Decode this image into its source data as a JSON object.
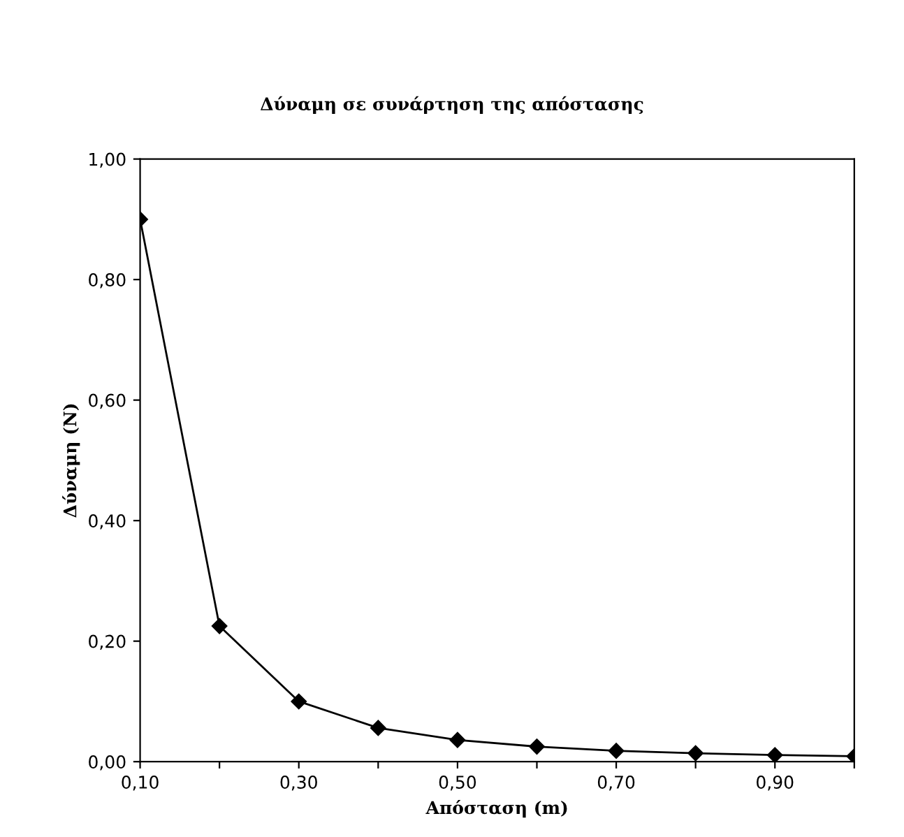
{
  "chart_data": {
    "type": "line",
    "title": "Δύναμη σε συνάρτηση της απόστασης",
    "xlabel": "Απόσταση (m)",
    "ylabel": "Δύναμη (N)",
    "x": [
      0.1,
      0.2,
      0.3,
      0.4,
      0.5,
      0.6,
      0.7,
      0.8,
      0.9,
      1.0
    ],
    "series": [
      {
        "color": "#000000",
        "values": [
          0.9,
          0.225,
          0.1,
          0.056,
          0.036,
          0.025,
          0.018,
          0.014,
          0.011,
          0.009
        ]
      }
    ],
    "xlim": [
      0.1,
      1.0
    ],
    "xticks": [
      {
        "value": 0.1,
        "label": "0,10"
      },
      {
        "value": 0.2,
        "label": null
      },
      {
        "value": 0.3,
        "label": "0,30"
      },
      {
        "value": 0.4,
        "label": null
      },
      {
        "value": 0.5,
        "label": "0,50"
      },
      {
        "value": 0.6,
        "label": null
      },
      {
        "value": 0.7,
        "label": "0,70"
      },
      {
        "value": 0.8,
        "label": null
      },
      {
        "value": 0.9,
        "label": "0,90"
      },
      {
        "value": 1.0,
        "label": null
      }
    ],
    "ylim": [
      0,
      1.0
    ],
    "yticks": [
      {
        "value": 0,
        "label": "0,00"
      },
      {
        "value": 0.2,
        "label": "0,20"
      },
      {
        "value": 0.4,
        "label": "0,40"
      },
      {
        "value": 0.6,
        "label": "0,60"
      },
      {
        "value": 0.8,
        "label": "0,80"
      },
      {
        "value": 1.0,
        "label": "1,00"
      }
    ],
    "marker": "diamond",
    "line_style": "solid",
    "grid": false,
    "legend": false
  }
}
